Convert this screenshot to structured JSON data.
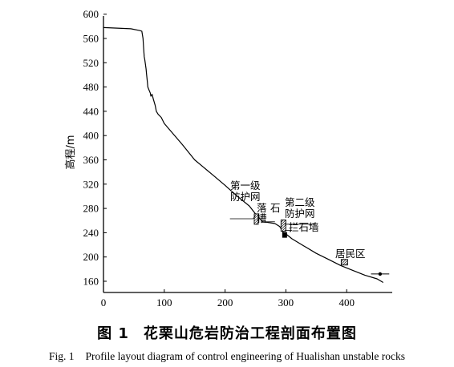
{
  "chart_data": {
    "type": "line",
    "ylabel": "高程/m",
    "xlabel": "",
    "xlim": [
      0,
      470
    ],
    "ylim": [
      150,
      600
    ],
    "x_ticks": [
      0,
      100,
      200,
      300,
      400
    ],
    "y_ticks": [
      160,
      200,
      240,
      280,
      320,
      360,
      400,
      440,
      480,
      520,
      560,
      600
    ],
    "grid": false,
    "series": [
      {
        "x": [
          0,
          45,
          60,
          63,
          65,
          66,
          67,
          68,
          70,
          71,
          72,
          73,
          75,
          77,
          78,
          80,
          82,
          85,
          87,
          90,
          95,
          100,
          130,
          150,
          180,
          200,
          220,
          240,
          250,
          262,
          270,
          282,
          290,
          296,
          300,
          310,
          330,
          350,
          370,
          390,
          410,
          430,
          450,
          460
        ],
        "y": [
          578,
          576,
          573,
          572,
          560,
          545,
          530,
          525,
          510,
          500,
          490,
          480,
          475,
          470,
          465,
          468,
          460,
          450,
          440,
          435,
          430,
          420,
          385,
          360,
          335,
          318,
          300,
          284,
          271,
          258,
          257,
          255,
          250,
          240,
          238,
          230,
          218,
          206,
          196,
          186,
          178,
          170,
          164,
          158
        ]
      }
    ],
    "annotations": [
      {
        "name": "level-1-net",
        "lines": [
          "第一级",
          "防护网"
        ],
        "x": 250,
        "y": 272
      },
      {
        "name": "rockfall-trench",
        "lines": [
          "落",
          "槽"
        ],
        "x": 262,
        "y": 258,
        "extra": "石"
      },
      {
        "name": "level-2-net",
        "lines": [
          "第二级",
          "防护网"
        ],
        "x": 293,
        "y": 262
      },
      {
        "name": "retaining-wall",
        "lines": [
          "拦石墙"
        ],
        "x": 297,
        "y": 240
      },
      {
        "name": "residential-area",
        "lines": [
          "居民区"
        ],
        "x": 395,
        "y": 195
      }
    ],
    "residential_level": 172
  },
  "caption": {
    "zh_number": "图 1",
    "zh_title": "花栗山危岩防治工程剖面布置图",
    "en_number": "Fig. 1",
    "en_title": "Profile layout diagram of control engineering of Hualishan unstable rocks"
  }
}
